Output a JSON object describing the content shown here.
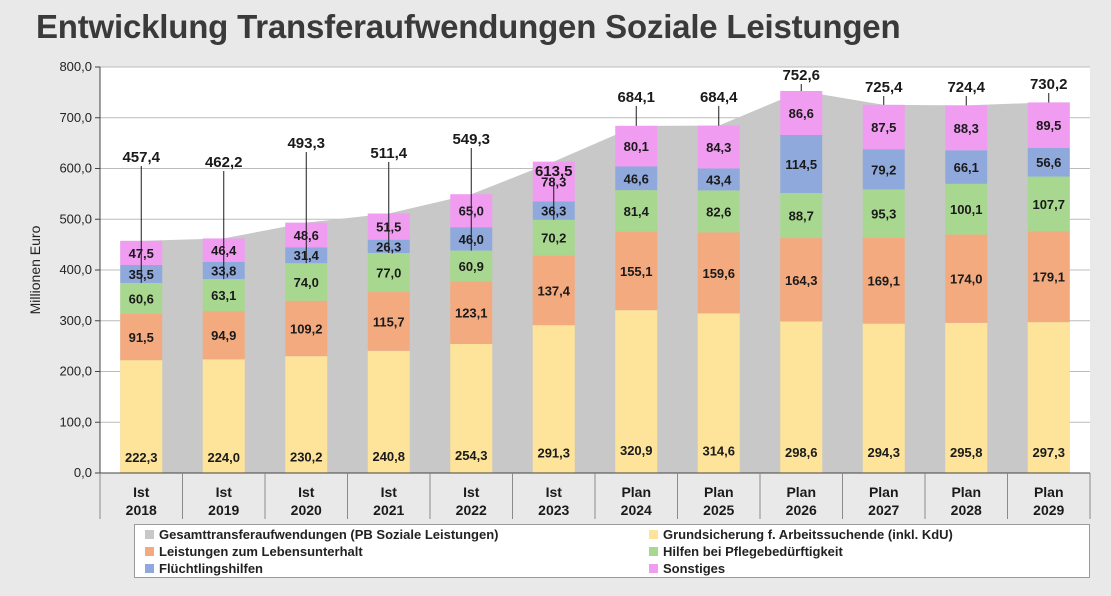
{
  "title": "Entwicklung Transferaufwendungen Soziale Leistungen",
  "chart_data": {
    "type": "bar",
    "stacked": true,
    "ylabel": "Millionen Euro",
    "ylim": [
      0,
      800
    ],
    "yticks": [
      "0,0",
      "100,0",
      "200,0",
      "300,0",
      "400,0",
      "500,0",
      "600,0",
      "700,0",
      "800,0"
    ],
    "grid": true,
    "legend_position": "bottom",
    "categories": [
      [
        "Ist",
        "2018"
      ],
      [
        "Ist",
        "2019"
      ],
      [
        "Ist",
        "2020"
      ],
      [
        "Ist",
        "2021"
      ],
      [
        "Ist",
        "2022"
      ],
      [
        "Ist",
        "2023"
      ],
      [
        "Plan",
        "2024"
      ],
      [
        "Plan",
        "2025"
      ],
      [
        "Plan",
        "2026"
      ],
      [
        "Plan",
        "2027"
      ],
      [
        "Plan",
        "2028"
      ],
      [
        "Plan",
        "2029"
      ]
    ],
    "total": {
      "name": "Gesamttransferaufwendungen (PB Soziale Leistungen)",
      "color": "#c8c8c8",
      "values": [
        457.4,
        462.2,
        493.3,
        511.4,
        549.3,
        613.5,
        684.1,
        684.4,
        752.6,
        725.4,
        724.4,
        730.2
      ],
      "labels": [
        "457,4",
        "462,2",
        "493,3",
        "511,4",
        "549,3",
        "613,5",
        "684,1",
        "684,4",
        "752,6",
        "725,4",
        "724,4",
        "730,2"
      ]
    },
    "series": [
      {
        "name": "Grundsicherung f. Arbeitssuchende (inkl. KdU)",
        "color": "#fde49a",
        "values": [
          222.3,
          224.0,
          230.2,
          240.8,
          254.3,
          291.3,
          320.9,
          314.6,
          298.6,
          294.3,
          295.8,
          297.3
        ],
        "labels": [
          "222,3",
          "224,0",
          "230,2",
          "240,8",
          "254,3",
          "291,3",
          "320,9",
          "314,6",
          "298,6",
          "294,3",
          "295,8",
          "297,3"
        ]
      },
      {
        "name": "Leistungen zum Lebensunterhalt",
        "color": "#f3aa7f",
        "values": [
          91.5,
          94.9,
          109.2,
          115.7,
          123.1,
          137.4,
          155.1,
          159.6,
          164.3,
          169.1,
          174.0,
          179.1
        ],
        "labels": [
          "91,5",
          "94,9",
          "109,2",
          "115,7",
          "123,1",
          "137,4",
          "155,1",
          "159,6",
          "164,3",
          "169,1",
          "174,0",
          "179,1"
        ]
      },
      {
        "name": "Hilfen bei Pflegebedürftigkeit",
        "color": "#a8d890",
        "values": [
          60.6,
          63.1,
          74.0,
          77.0,
          60.9,
          70.2,
          81.4,
          82.6,
          88.7,
          95.3,
          100.1,
          107.7
        ],
        "labels": [
          "60,6",
          "63,1",
          "74,0",
          "77,0",
          "60,9",
          "70,2",
          "81,4",
          "82,6",
          "88,7",
          "95,3",
          "100,1",
          "107,7"
        ]
      },
      {
        "name": "Flüchtlingshilfen",
        "color": "#8fa9dc",
        "values": [
          35.5,
          33.8,
          31.4,
          26.3,
          46.0,
          36.3,
          46.6,
          43.4,
          114.5,
          79.2,
          66.1,
          56.6
        ],
        "labels": [
          "35,5",
          "33,8",
          "31,4",
          "26,3",
          "46,0",
          "36,3",
          "46,6",
          "43,4",
          "114,5",
          "79,2",
          "66,1",
          "56,6"
        ]
      },
      {
        "name": "Sonstiges",
        "color": "#f09cf0",
        "values": [
          47.5,
          46.4,
          48.6,
          51.5,
          65.0,
          78.3,
          80.1,
          84.3,
          86.6,
          87.5,
          88.3,
          89.5
        ],
        "labels": [
          "47,5",
          "46,4",
          "48,6",
          "51,5",
          "65,0",
          "78,3",
          "80,1",
          "84,3",
          "86,6",
          "87,5",
          "88,3",
          "89,5"
        ]
      }
    ]
  }
}
